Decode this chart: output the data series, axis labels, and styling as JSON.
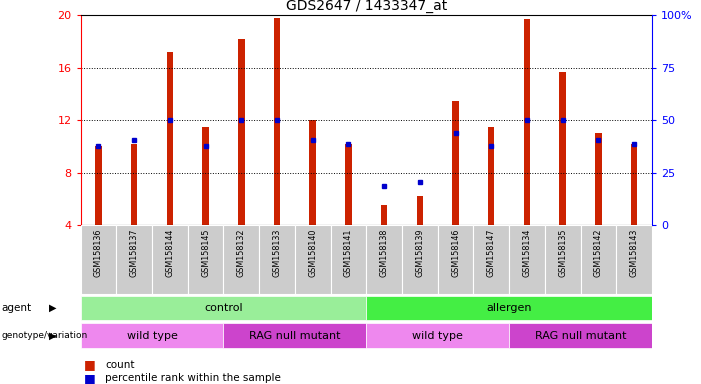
{
  "title": "GDS2647 / 1433347_at",
  "samples": [
    "GSM158136",
    "GSM158137",
    "GSM158144",
    "GSM158145",
    "GSM158132",
    "GSM158133",
    "GSM158140",
    "GSM158141",
    "GSM158138",
    "GSM158139",
    "GSM158146",
    "GSM158147",
    "GSM158134",
    "GSM158135",
    "GSM158142",
    "GSM158143"
  ],
  "count_values": [
    10.0,
    10.2,
    17.2,
    11.5,
    18.2,
    19.8,
    12.0,
    10.2,
    5.5,
    6.2,
    13.5,
    11.5,
    19.7,
    15.7,
    11.0,
    10.2
  ],
  "percentile_values": [
    10.0,
    10.5,
    12.0,
    10.0,
    12.0,
    12.0,
    10.5,
    10.2,
    7.0,
    7.3,
    11.0,
    10.0,
    12.0,
    12.0,
    10.5,
    10.2
  ],
  "y_min": 4,
  "y_max": 20,
  "y_ticks": [
    4,
    8,
    12,
    16,
    20
  ],
  "y2_ticks": [
    0,
    25,
    50,
    75,
    100
  ],
  "bar_color": "#cc2200",
  "percentile_color": "#0000cc",
  "agent_groups": [
    {
      "label": "control",
      "start": 0,
      "end": 8,
      "color": "#99ee99"
    },
    {
      "label": "allergen",
      "start": 8,
      "end": 16,
      "color": "#44ee44"
    }
  ],
  "genotype_groups": [
    {
      "label": "wild type",
      "start": 0,
      "end": 4,
      "color": "#ee88ee"
    },
    {
      "label": "RAG null mutant",
      "start": 4,
      "end": 8,
      "color": "#cc44cc"
    },
    {
      "label": "wild type",
      "start": 8,
      "end": 12,
      "color": "#ee88ee"
    },
    {
      "label": "RAG null mutant",
      "start": 12,
      "end": 16,
      "color": "#cc44cc"
    }
  ],
  "legend_count_label": "count",
  "legend_pct_label": "percentile rank within the sample",
  "bar_width": 0.18,
  "title_fontsize": 10
}
